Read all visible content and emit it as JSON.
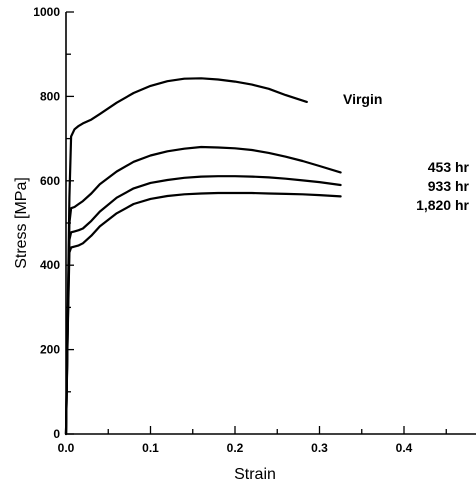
{
  "chart_data": {
    "type": "line",
    "xlabel": "Strain",
    "ylabel": "Stress [MPa]",
    "xlim": [
      0,
      0.45
    ],
    "ylim": [
      0,
      1000
    ],
    "x_ticks": [
      "0.0",
      "0.1",
      "0.2",
      "0.3",
      "0.4"
    ],
    "y_ticks": [
      "0",
      "200",
      "400",
      "600",
      "800",
      "1000"
    ],
    "grid": false,
    "legend": "inline labels at right end of curves",
    "series": [
      {
        "name": "Virgin",
        "x": [
          0,
          0.002,
          0.004,
          0.006,
          0.01,
          0.015,
          0.02,
          0.03,
          0.04,
          0.06,
          0.08,
          0.1,
          0.12,
          0.14,
          0.16,
          0.18,
          0.2,
          0.22,
          0.24,
          0.26,
          0.285
        ],
        "y": [
          0,
          280,
          560,
          705,
          722,
          730,
          736,
          745,
          758,
          785,
          808,
          825,
          836,
          842,
          843,
          840,
          835,
          828,
          818,
          803,
          787
        ]
      },
      {
        "name": "453 hr",
        "x": [
          0,
          0.002,
          0.004,
          0.006,
          0.01,
          0.015,
          0.02,
          0.03,
          0.04,
          0.06,
          0.08,
          0.1,
          0.12,
          0.14,
          0.16,
          0.18,
          0.2,
          0.22,
          0.24,
          0.26,
          0.28,
          0.3,
          0.325
        ],
        "y": [
          0,
          260,
          500,
          535,
          538,
          545,
          552,
          570,
          592,
          622,
          645,
          660,
          670,
          676,
          680,
          679,
          677,
          673,
          666,
          657,
          647,
          635,
          620
        ]
      },
      {
        "name": "933 hr",
        "x": [
          0,
          0.002,
          0.004,
          0.006,
          0.01,
          0.015,
          0.02,
          0.03,
          0.04,
          0.06,
          0.08,
          0.1,
          0.12,
          0.14,
          0.16,
          0.18,
          0.2,
          0.22,
          0.24,
          0.26,
          0.28,
          0.3,
          0.325
        ],
        "y": [
          0,
          250,
          460,
          478,
          480,
          483,
          487,
          505,
          527,
          560,
          582,
          595,
          602,
          607,
          610,
          611,
          611,
          610,
          608,
          605,
          601,
          597,
          590
        ]
      },
      {
        "name": "1,820 hr",
        "x": [
          0,
          0.002,
          0.004,
          0.006,
          0.01,
          0.015,
          0.02,
          0.03,
          0.04,
          0.06,
          0.08,
          0.1,
          0.12,
          0.14,
          0.16,
          0.18,
          0.2,
          0.22,
          0.24,
          0.26,
          0.28,
          0.3,
          0.325
        ],
        "y": [
          0,
          240,
          430,
          442,
          444,
          447,
          452,
          470,
          492,
          523,
          545,
          557,
          564,
          568,
          570,
          571,
          571,
          571,
          570,
          569,
          568,
          566,
          563
        ]
      }
    ]
  }
}
